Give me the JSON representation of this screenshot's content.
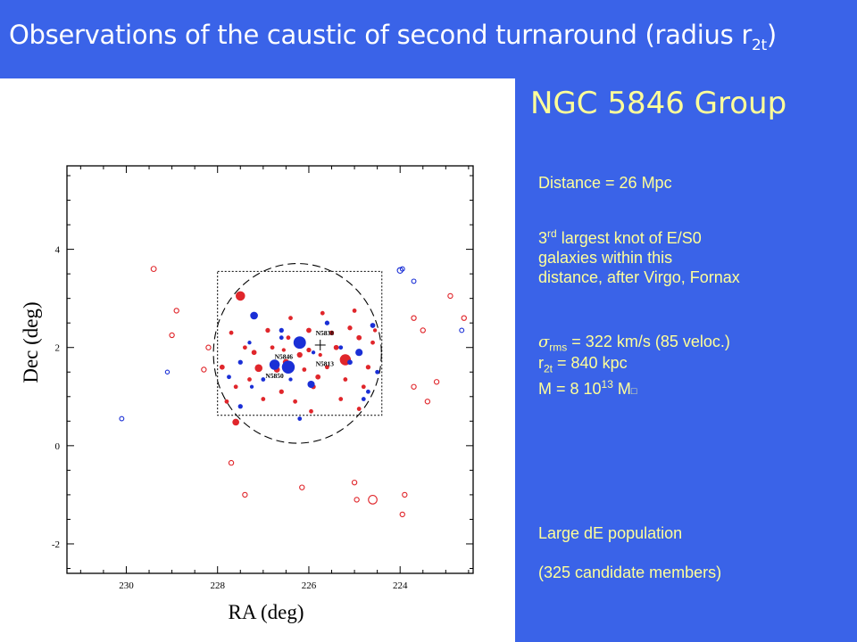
{
  "slide": {
    "title": {
      "text": "Observations of the caustic of second turnaround (radius r",
      "sub": "2t",
      "close": ")"
    },
    "subtitle": "NGC 5846 Group",
    "info": {
      "distance": "Distance = 26 Mpc",
      "knot_sup": "rd",
      "knot_line1_pre": "3",
      "knot_line1_post": " largest knot of E/S0",
      "knot_line2": "galaxies within this",
      "knot_line3": "distance, after Virgo, Fornax",
      "sigma_symbol": "σ",
      "sigma_sub": "rms",
      "sigma_rest": " = 322 km/s (85 veloc.)",
      "r_label": "r",
      "r_sub": "2t",
      "r_rest": " = 840 kpc",
      "mass_pre": "M = 8 10",
      "mass_sup": "13",
      "mass_post": " M",
      "mass_symbol": "□",
      "population": "Large dE population",
      "candidates": "(325 candidate members)"
    }
  },
  "chart_data": {
    "type": "scatter",
    "xlabel": "RA (deg)",
    "ylabel": "Dec (deg)",
    "xlim": [
      231.3,
      222.4
    ],
    "ylim": [
      -2.6,
      5.7
    ],
    "xticks": [
      230,
      228,
      226,
      224
    ],
    "yticks": [
      -2,
      0,
      2,
      4
    ],
    "colors": {
      "red": "#e0262b",
      "blue": "#1a2fd6",
      "frame": "#000000"
    },
    "box": {
      "ra": [
        228.0,
        224.4
      ],
      "dec": [
        0.62,
        3.55
      ]
    },
    "circle": {
      "ra_center": 226.25,
      "dec_center": 1.88,
      "ra_semi": 1.84,
      "dec_semi": 1.83
    },
    "cross": {
      "ra": 225.75,
      "dec": 2.05
    },
    "galaxy_labels": [
      {
        "text": "N5838",
        "ra": 225.85,
        "dec": 2.25
      },
      {
        "text": "N5846",
        "ra": 226.75,
        "dec": 1.77
      },
      {
        "text": "N5813",
        "ra": 225.85,
        "dec": 1.62
      },
      {
        "text": "N5850",
        "ra": 226.95,
        "dec": 1.38
      }
    ],
    "series": [
      {
        "name": "red",
        "points": [
          [
            227.5,
            3.05,
            2.2
          ],
          [
            225.2,
            1.75,
            2.6
          ],
          [
            227.1,
            1.58,
            1.8
          ],
          [
            227.6,
            0.48,
            1.6
          ],
          [
            226.5,
            1.7,
            1.5
          ],
          [
            226.7,
            1.55,
            1.4
          ],
          [
            226.2,
            1.85,
            1.3
          ],
          [
            226.0,
            2.35,
            1.2
          ],
          [
            225.4,
            2.0,
            1.2
          ],
          [
            224.9,
            2.2,
            1.2
          ],
          [
            225.8,
            1.4,
            1.2
          ],
          [
            227.2,
            1.9,
            1.2
          ],
          [
            227.9,
            1.6,
            1.2
          ],
          [
            226.9,
            2.35,
            1.1
          ],
          [
            226.0,
            1.95,
            1.1
          ],
          [
            225.5,
            2.3,
            1.1
          ],
          [
            225.1,
            2.4,
            1.1
          ],
          [
            224.7,
            1.6,
            1.1
          ],
          [
            225.9,
            1.2,
            1.1
          ],
          [
            226.6,
            1.1,
            1.1
          ],
          [
            227.6,
            1.2,
            1.0
          ],
          [
            227.4,
            2.0,
            1.0
          ],
          [
            226.4,
            2.6,
            1.0
          ],
          [
            225.7,
            2.7,
            1.0
          ],
          [
            225.0,
            2.75,
            1.0
          ],
          [
            224.6,
            2.1,
            1.0
          ],
          [
            224.8,
            1.2,
            1.0
          ],
          [
            225.3,
            0.95,
            1.0
          ],
          [
            226.3,
            0.9,
            1.0
          ],
          [
            227.0,
            0.95,
            1.0
          ],
          [
            227.8,
            0.9,
            1.0
          ],
          [
            225.6,
            1.6,
            1.0
          ],
          [
            226.1,
            1.55,
            1.0
          ],
          [
            226.8,
            2.0,
            1.0
          ],
          [
            227.3,
            1.35,
            1.0
          ],
          [
            225.2,
            1.35,
            1.0
          ],
          [
            224.9,
            0.75,
            1.0
          ],
          [
            225.95,
            0.7,
            1.0
          ],
          [
            226.45,
            2.2,
            1.0
          ],
          [
            227.7,
            2.3,
            1.0
          ],
          [
            226.55,
            1.95,
            0.9
          ],
          [
            225.75,
            1.85,
            0.9
          ],
          [
            224.55,
            2.35,
            0.9
          ]
        ],
        "open": [
          [
            229.4,
            3.6,
            1.2
          ],
          [
            228.9,
            2.75,
            1.1
          ],
          [
            229.0,
            2.25,
            1.1
          ],
          [
            228.2,
            2.0,
            1.1
          ],
          [
            228.3,
            1.55,
            1.1
          ],
          [
            223.7,
            2.6,
            1.1
          ],
          [
            223.5,
            2.35,
            1.1
          ],
          [
            223.2,
            1.3,
            1.1
          ],
          [
            223.7,
            1.2,
            1.1
          ],
          [
            222.9,
            3.05,
            1.1
          ],
          [
            222.6,
            2.6,
            1.1
          ],
          [
            227.7,
            -0.35,
            1.1
          ],
          [
            227.4,
            -1.0,
            1.1
          ],
          [
            226.15,
            -0.85,
            1.1
          ],
          [
            225.0,
            -0.75,
            1.1
          ],
          [
            224.6,
            -1.1,
            2.0
          ],
          [
            223.9,
            -1.0,
            1.1
          ],
          [
            223.95,
            -1.4,
            1.1
          ],
          [
            224.95,
            -1.1,
            1.1
          ],
          [
            223.4,
            0.9,
            1.1
          ]
        ]
      },
      {
        "name": "blue",
        "points": [
          [
            226.45,
            1.6,
            3.0
          ],
          [
            226.2,
            2.1,
            2.9
          ],
          [
            226.75,
            1.65,
            2.4
          ],
          [
            227.2,
            2.65,
            1.8
          ],
          [
            225.95,
            1.25,
            1.7
          ],
          [
            224.9,
            1.9,
            1.7
          ],
          [
            225.1,
            1.7,
            1.2
          ],
          [
            224.6,
            2.45,
            1.2
          ],
          [
            226.6,
            2.35,
            1.1
          ],
          [
            225.6,
            2.5,
            1.1
          ],
          [
            227.5,
            1.7,
            1.1
          ],
          [
            227.5,
            0.8,
            1.1
          ],
          [
            226.2,
            0.55,
            1.0
          ],
          [
            224.8,
            0.95,
            1.0
          ],
          [
            226.6,
            2.2,
            1.0
          ],
          [
            227.0,
            1.35,
            1.0
          ],
          [
            225.3,
            2.0,
            1.0
          ],
          [
            224.5,
            1.5,
            1.0
          ],
          [
            224.7,
            1.1,
            1.0
          ],
          [
            227.75,
            1.4,
            1.0
          ],
          [
            226.4,
            1.35,
            0.9
          ],
          [
            225.9,
            1.9,
            0.9
          ],
          [
            227.3,
            2.1,
            0.9
          ],
          [
            227.25,
            1.2,
            0.9
          ]
        ],
        "open": [
          [
            224.0,
            3.57,
            1.3
          ],
          [
            223.95,
            3.6,
            1.0
          ],
          [
            223.7,
            3.35,
            1.0
          ],
          [
            222.65,
            2.35,
            1.0
          ],
          [
            230.1,
            0.55,
            1.0
          ],
          [
            229.1,
            1.5,
            0.9
          ]
        ]
      }
    ]
  }
}
